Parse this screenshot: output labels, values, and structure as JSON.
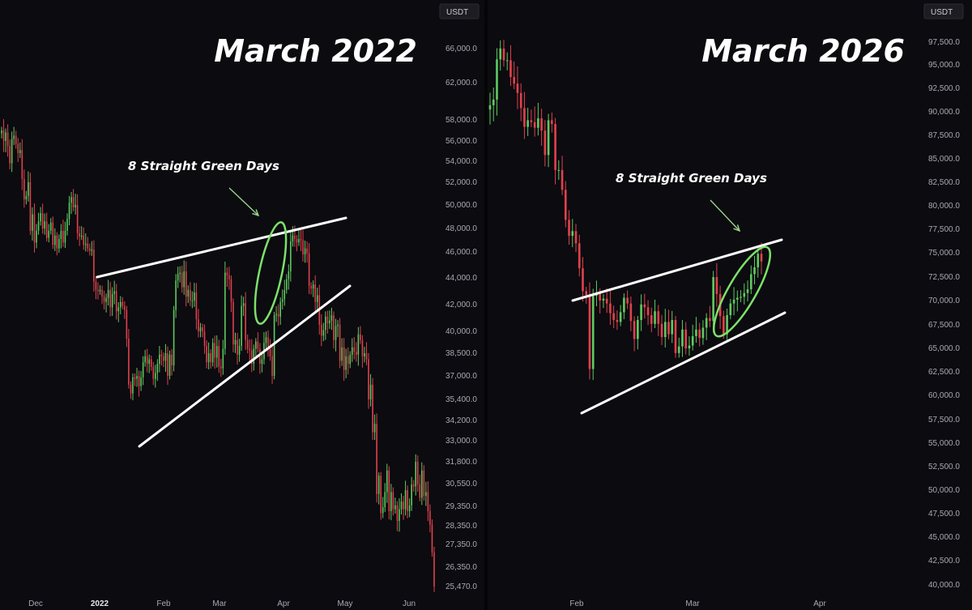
{
  "colors": {
    "background": "#0b0b10",
    "up": "#5fc95f",
    "down": "#e0414d",
    "trendline": "#ffffff",
    "highlight": "#7de06a",
    "arrow": "#9ad48a"
  },
  "chart_data": [
    {
      "type": "candlestick",
      "title": "March 2022",
      "annotation": "8 Straight Green Days",
      "currency": "USDT",
      "yticks": [
        "66,000.0",
        "62,000.0",
        "58,000.0",
        "56,000.0",
        "54,000.0",
        "52,000.0",
        "50,000.0",
        "48,000.0",
        "46,000.0",
        "44,000.0",
        "42,000.0",
        "40,000.0",
        "38,500.0",
        "37,000.0",
        "35,400.0",
        "34,200.0",
        "33,000.0",
        "31,800.0",
        "30,550.0",
        "29,350.0",
        "28,350.0",
        "27,350.0",
        "26,350.0",
        "25,470.0"
      ],
      "xticks": [
        {
          "label": "Dec",
          "bold": false
        },
        {
          "label": "2022",
          "bold": true
        },
        {
          "label": "Feb",
          "bold": false
        },
        {
          "label": "Mar",
          "bold": false
        },
        {
          "label": "Apr",
          "bold": false
        },
        {
          "label": "May",
          "bold": false
        },
        {
          "label": "Jun",
          "bold": false
        }
      ],
      "trendlines": [
        {
          "name": "upper",
          "from": {
            "date": "2022-01-21",
            "price": 43700
          },
          "to": {
            "date": "2022-04-17",
            "price": 49200
          }
        },
        {
          "name": "lower",
          "from": {
            "date": "2022-01-29",
            "price": 33000
          },
          "to": {
            "date": "2022-04-19",
            "price": 44000
          }
        }
      ],
      "highlight": {
        "from": "2022-03-21",
        "to": "2022-03-29"
      },
      "closes": [
        57000,
        56000,
        56800,
        55500,
        53800,
        56200,
        56500,
        55700,
        54800,
        55100,
        52300,
        50500,
        50800,
        52000,
        47800,
        49200,
        46800,
        47800,
        48600,
        49300,
        48000,
        48600,
        47200,
        47800,
        48500,
        46600,
        47400,
        46300,
        47100,
        47800,
        46800,
        47800,
        48800,
        50200,
        50700,
        49800,
        50000,
        47600,
        47300,
        47400,
        46600,
        46700,
        46300,
        46100,
        46200,
        43700,
        43100,
        43000,
        43100,
        42600,
        42200,
        42500,
        43100,
        41800,
        42800,
        43000,
        41500,
        41800,
        42200,
        41900,
        41600,
        39500,
        36400,
        35800,
        36900,
        36800,
        37000,
        36300,
        36900,
        37900,
        38300,
        37800,
        38100,
        37600,
        36800,
        37200,
        37800,
        38400,
        38300,
        38000,
        38500,
        37000,
        38400,
        37700,
        41600,
        43800,
        44300,
        44400,
        43300,
        44500,
        42600,
        43100,
        42300,
        42300,
        42900,
        40900,
        40000,
        40300,
        40000,
        39000,
        37900,
        38500,
        37900,
        39200,
        38200,
        39000,
        37600,
        37500,
        38800,
        44400,
        44200,
        43900,
        42200,
        39100,
        39400,
        38400,
        39000,
        41900,
        42100,
        39400,
        38800,
        38700,
        37800,
        38800,
        39300,
        38800,
        37800,
        38100,
        39200,
        39600,
        38800,
        38300,
        37000,
        41200,
        41300,
        41100,
        42200,
        42400,
        43100,
        43900,
        44500,
        46900,
        47400,
        47100,
        46800,
        47100,
        47000,
        45800,
        46300,
        45900,
        43400,
        43200,
        43500,
        42200,
        42700,
        40500,
        39700,
        40100,
        41100,
        40600,
        40800,
        41200,
        39400,
        40400,
        40500,
        38000,
        38900,
        37400,
        38300,
        37800,
        38400,
        38900,
        38600,
        38400,
        39800,
        39400,
        38300,
        38500,
        38100,
        35400,
        36400,
        33500,
        34000,
        30000,
        31000,
        29000,
        29300,
        30100,
        31300,
        29100,
        30100,
        29200,
        29400,
        28600,
        29200,
        29600,
        29200,
        30200,
        29100,
        29400,
        30500,
        30400,
        31800,
        30500,
        29800,
        31300,
        29900,
        30100,
        29100,
        28400,
        27000,
        25470
      ]
    },
    {
      "type": "candlestick",
      "title": "March 2026",
      "annotation": "8 Straight Green Days",
      "currency": "USDT",
      "yticks": [
        "97,500.0",
        "95,000.0",
        "92,500.0",
        "90,000.0",
        "87,500.0",
        "85,000.0",
        "82,500.0",
        "80,000.0",
        "77,500.0",
        "75,000.0",
        "72,500.0",
        "70,000.0",
        "67,500.0",
        "65,000.0",
        "62,500.0",
        "60,000.0",
        "57,500.0",
        "55,000.0",
        "52,500.0",
        "50,000.0",
        "47,500.0",
        "45,000.0",
        "42,500.0",
        "40,000.0"
      ],
      "xticks": [
        {
          "label": "Feb",
          "bold": false
        },
        {
          "label": "Mar",
          "bold": false
        },
        {
          "label": "Apr",
          "bold": false
        }
      ],
      "trendlines": [
        {
          "name": "upper",
          "from": {
            "date": "2026-01-30",
            "price": 70500
          },
          "to": {
            "date": "2026-03-20",
            "price": 76800
          }
        },
        {
          "name": "lower",
          "from": {
            "date": "2026-01-30",
            "price": 57900
          },
          "to": {
            "date": "2026-03-20",
            "price": 68600
          }
        }
      ],
      "highlight": {
        "from": "2026-03-12",
        "to": "2026-03-19"
      },
      "closes": [
        90700,
        91300,
        95600,
        96800,
        95500,
        95500,
        93700,
        93000,
        92000,
        90400,
        88400,
        89100,
        88900,
        88300,
        89300,
        88000,
        85400,
        89100,
        88700,
        83800,
        83800,
        81700,
        78500,
        76800,
        77300,
        76000,
        73400,
        71000,
        70600,
        62800,
        70500,
        70800,
        70000,
        70200,
        69700,
        68700,
        68000,
        67800,
        68800,
        70300,
        69700,
        67900,
        66000,
        68000,
        69600,
        69300,
        68500,
        67600,
        68900,
        67600,
        66200,
        67800,
        66500,
        68000,
        64500,
        65200,
        67000,
        65000,
        65300,
        66300,
        67000,
        66100,
        67200,
        68200,
        67900,
        72500,
        70700,
        68400,
        66500,
        68500,
        69700,
        70100,
        70300,
        70400,
        70800,
        71200,
        72800,
        73500,
        74900,
        74100
      ]
    }
  ]
}
